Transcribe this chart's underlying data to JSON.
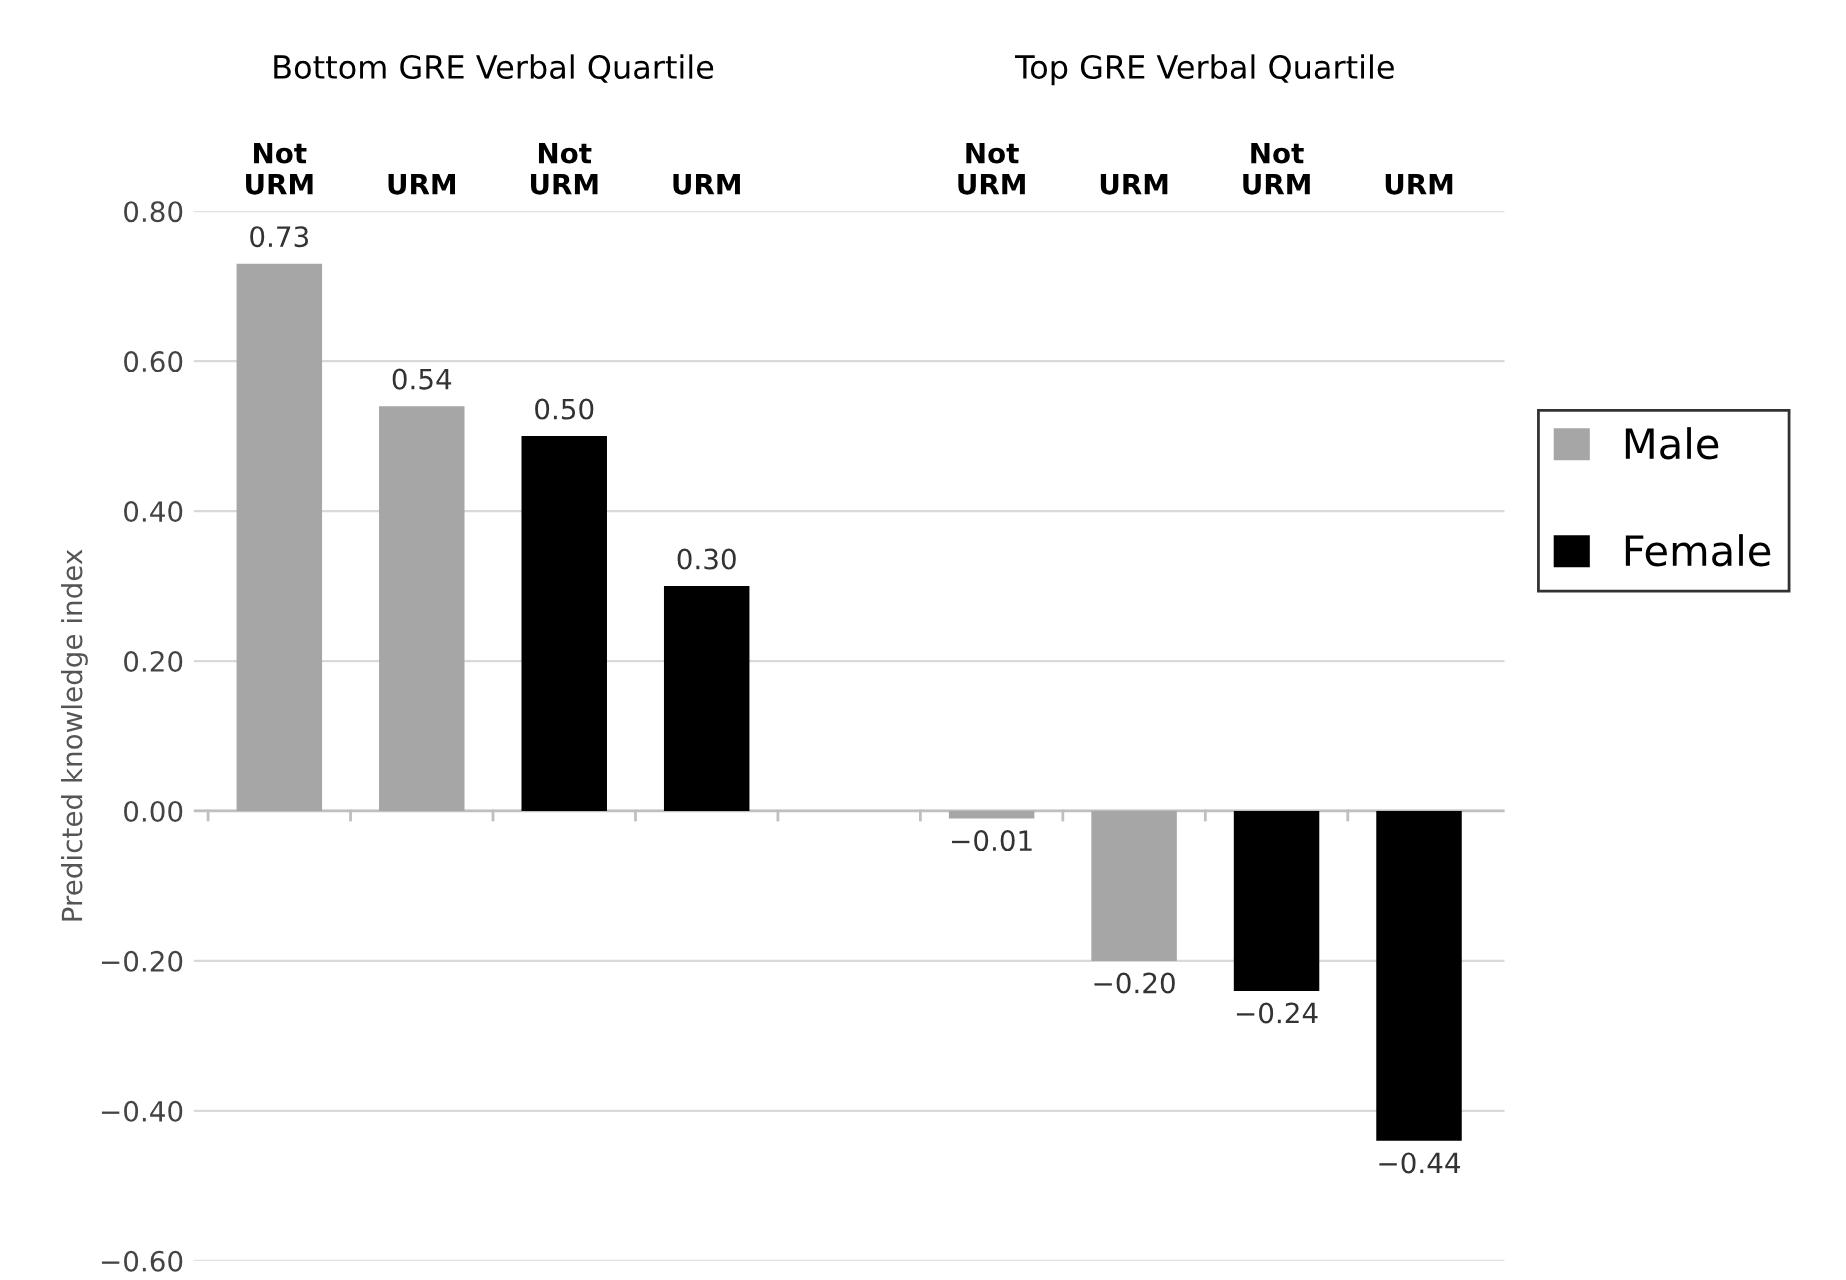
{
  "chart_data": {
    "type": "bar",
    "ylabel": "Predicted knowledge index",
    "categories": [
      "Not\nURM",
      "URM",
      "Not\nURM",
      "URM",
      null,
      "Not\nURM",
      "URM",
      "Not\nURM",
      "URM"
    ],
    "series": [
      {
        "name": "Male",
        "color": "#a6a6a6",
        "values": [
          0.73,
          0.54,
          null,
          null,
          null,
          -0.01,
          -0.2,
          null,
          null
        ],
        "value_labels": [
          "0.73",
          "0.54",
          null,
          null,
          null,
          "−0.01",
          "−0.20",
          null,
          null
        ]
      },
      {
        "name": "Female",
        "color": "#000000",
        "values": [
          null,
          null,
          0.5,
          0.3,
          null,
          null,
          null,
          -0.24,
          -0.44
        ],
        "value_labels": [
          null,
          null,
          "0.50",
          "0.30",
          null,
          null,
          null,
          "−0.24",
          "−0.44"
        ]
      }
    ],
    "ylim": [
      -0.6,
      0.8
    ],
    "yticks": [
      {
        "value": -0.6,
        "label": "−0.60"
      },
      {
        "value": -0.4,
        "label": "−0.40"
      },
      {
        "value": -0.2,
        "label": "−0.20"
      },
      {
        "value": 0,
        "label": "0.00"
      },
      {
        "value": 0.2,
        "label": "0.20"
      },
      {
        "value": 0.4,
        "label": "0.40"
      },
      {
        "value": 0.6,
        "label": "0.60"
      },
      {
        "value": 0.8,
        "label": "0.80"
      }
    ],
    "grid": "y",
    "legend": "right",
    "annotations": [
      "Bottom GRE Verbal Quartile",
      "Top GRE Verbal Quartile"
    ]
  }
}
